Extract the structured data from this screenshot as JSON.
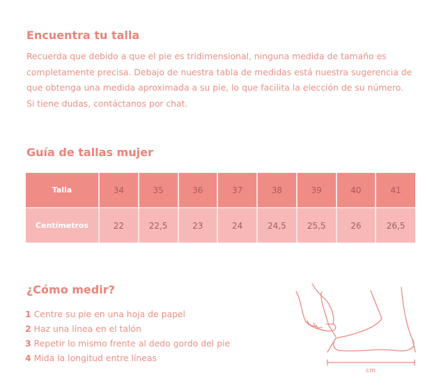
{
  "intro": {
    "title": "Encuentra tu talla",
    "lines": [
      "Recuerda que debido a que el pie es tridimensional, ninguna medida de tamaño es",
      "completamente precisa. Debajo de nuestra tabla de medidas está nuestra sugerencia de",
      "que obtenga una medida aproximada a su pie, lo que facilita la elección de su número.",
      "Si tiene dudas, contáctanos por chat."
    ]
  },
  "guide": {
    "title": "Guía de tallas mujer",
    "rows": [
      {
        "label": "Talla",
        "values": [
          "34",
          "35",
          "36",
          "37",
          "38",
          "39",
          "40",
          "41"
        ]
      },
      {
        "label": "Centímetros",
        "values": [
          "22",
          "22,5",
          "23",
          "24",
          "24,5",
          "25,5",
          "26",
          "26,5"
        ]
      }
    ]
  },
  "measure": {
    "title": "¿Cómo medir?",
    "steps": [
      {
        "num": "1",
        "text": "Centre su pie en una hoja de papel"
      },
      {
        "num": "2",
        "text": "Haz una línea en el talón"
      },
      {
        "num": "3",
        "text": "Repetir lo mismo frente al dedo gordo del pie"
      },
      {
        "num": "4",
        "text": "Mida la longitud entre líneas"
      }
    ],
    "unit": "cm"
  },
  "colors": {
    "accent": "#ec8378",
    "header_row": "#f08c86",
    "second_row": "#f6b9b7"
  }
}
